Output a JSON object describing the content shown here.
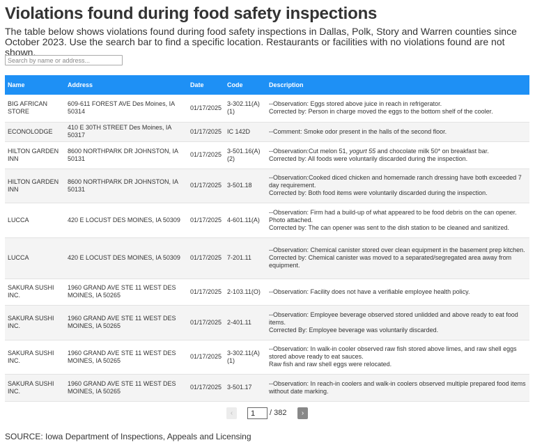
{
  "title": "Violations found during food safety inspections",
  "subtitle": "The table below shows violations found during food safety inspections in Dallas, Polk, Story and Warren counties since October 2023. Use the search bar to find a specific location. Restaurants or facilities with no violations found are not shown.",
  "search": {
    "placeholder": "Search by name or address..."
  },
  "table": {
    "columns": [
      "Name",
      "Address",
      "Date",
      "Code",
      "Description"
    ],
    "rows": [
      {
        "name": "BIG AFRICAN STORE",
        "address": "609-611 FOREST AVE Des Moines, IA 50314",
        "date": "01/17/2025",
        "code": "3-302.11(A)(1)",
        "description": "--Observation: Eggs stored above juice in reach in refrigerator.\nCorrected by: Person in charge moved the eggs to the bottom shelf of the cooler."
      },
      {
        "name": "ECONOLODGE",
        "address": "410 E 30TH STREET Des Moines, IA 50317",
        "date": "01/17/2025",
        "code": "IC 142D",
        "description": "--Comment: Smoke odor present in the halls of the second floor."
      },
      {
        "name": "HILTON GARDEN INN",
        "address": "8600 NORTHPARK DR JOHNSTON, IA 50131",
        "date": "01/17/2025",
        "code": "3-501.16(A)(2)",
        "description_pre": "--Observation:Cut melon 51, ",
        "description_em": "yogurt 55",
        "description_post": " and chocolate milk 50* on breakfast bar.",
        "description_line2": "Corrected by: All foods were voluntarily discarded during the inspection."
      },
      {
        "name": "HILTON GARDEN INN",
        "address": "8600 NORTHPARK DR JOHNSTON, IA 50131",
        "date": "01/17/2025",
        "code": "3-501.18",
        "description": "--Observation:Cooked diced chicken and homemade ranch dressing have both exceeded 7 day requirement.\nCorrected by: Both food items were voluntarily discarded during the inspection."
      },
      {
        "name": "LUCCA",
        "address": "420 E LOCUST DES MOINES, IA 50309",
        "date": "01/17/2025",
        "code": "4-601.11(A)",
        "description": "--Observation: Firm had a build-up of what appeared to be food debris on the can opener. Photo attached.\nCorrected by: The can opener was sent to the dish station to be cleaned and sanitized."
      },
      {
        "name": "LUCCA",
        "address": "420 E LOCUST DES MOINES, IA 50309",
        "date": "01/17/2025",
        "code": "7-201.11",
        "description": "--Observation: Chemical canister stored over clean equipment in the basement prep kitchen.\nCorrected by: Chemical canister was moved to a separated/segregated area away from equipment."
      },
      {
        "name": "SAKURA SUSHI INC.",
        "address": "1960 GRAND AVE STE 11 WEST DES MOINES, IA 50265",
        "date": "01/17/2025",
        "code": "2-103.11(O)",
        "description": "--Observation: Facility does not have a verifiable employee health policy."
      },
      {
        "name": "SAKURA SUSHI INC.",
        "address": "1960 GRAND AVE STE 11 WEST DES MOINES, IA 50265",
        "date": "01/17/2025",
        "code": "2-401.11",
        "description": "--Observation: Employee beverage observed stored unlidded and above ready to eat food items.\nCorrected By: Employee beverage was voluntarily discarded."
      },
      {
        "name": "SAKURA SUSHI INC.",
        "address": "1960 GRAND AVE STE 11 WEST DES MOINES, IA 50265",
        "date": "01/17/2025",
        "code": "3-302.11(A)(1)",
        "description": "--Observation: In walk-in cooler observed raw fish stored above limes, and raw shell eggs stored above ready to eat sauces.\nRaw fish and raw shell eggs were relocated."
      },
      {
        "name": "SAKURA SUSHI INC.",
        "address": "1960 GRAND AVE STE 11 WEST DES MOINES, IA 50265",
        "date": "01/17/2025",
        "code": "3-501.17",
        "description": "--Observation: In reach-in coolers and walk-in coolers observed multiple prepared food items without date marking."
      }
    ]
  },
  "pagination": {
    "prev_label": "‹",
    "next_label": "›",
    "current_page": "1",
    "total_label": "/ 382"
  },
  "source": "SOURCE: Iowa Department of Inspections, Appeals and Licensing",
  "colors": {
    "header_bg": "#1e90f5",
    "row_alt": "#f4f4f4"
  }
}
